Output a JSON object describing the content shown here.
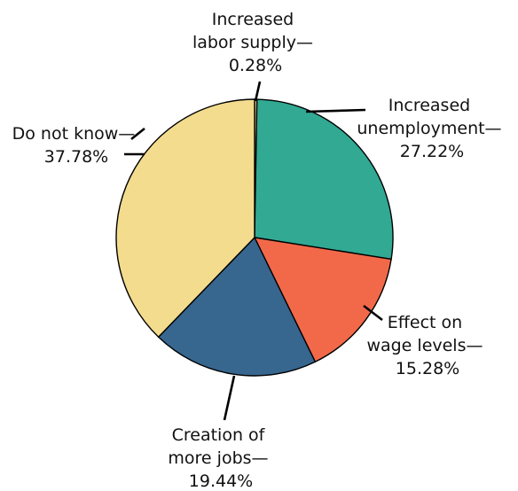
{
  "chart_data": {
    "type": "pie",
    "title": "",
    "slices": [
      {
        "label_lines": [
          "Increased",
          "labor supply—",
          "0.28%"
        ],
        "value": 0.28,
        "color": "#f3dc8e"
      },
      {
        "label_lines": [
          "Increased",
          "unemployment—",
          "27.22%"
        ],
        "value": 27.22,
        "color": "#31a993"
      },
      {
        "label_lines": [
          "Effect on",
          "wage levels—",
          "15.28%"
        ],
        "value": 15.28,
        "color": "#f2694a"
      },
      {
        "label_lines": [
          "Creation of",
          "more jobs—",
          "19.44%"
        ],
        "value": 19.44,
        "color": "#37668f"
      },
      {
        "label_lines": [
          "Do not know—",
          "37.78%"
        ],
        "value": 37.78,
        "color": "#f3dc8e"
      }
    ],
    "start_angle_deg": 0,
    "direction": "clockwise",
    "legend": "none"
  }
}
